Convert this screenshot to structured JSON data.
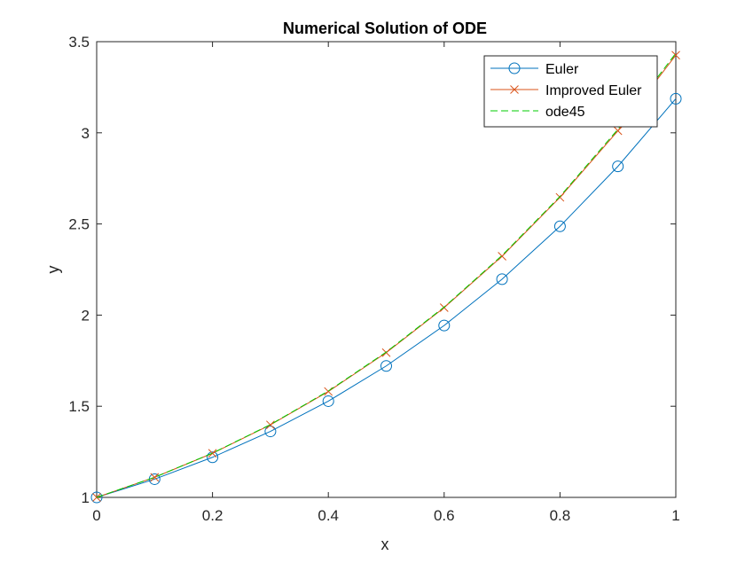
{
  "chart_data": {
    "type": "line",
    "title": "Numerical Solution of ODE",
    "xlabel": "x",
    "ylabel": "y",
    "xlim": [
      0,
      1
    ],
    "ylim": [
      1,
      3.5
    ],
    "xticks": [
      0,
      0.2,
      0.4,
      0.6,
      0.8,
      1
    ],
    "xtick_labels": [
      "0",
      "0.2",
      "0.4",
      "0.6",
      "0.8",
      "1"
    ],
    "yticks": [
      1,
      1.5,
      2,
      2.5,
      3,
      3.5
    ],
    "ytick_labels": [
      "1",
      "1.5",
      "2",
      "2.5",
      "3",
      "3.5"
    ],
    "grid": false,
    "legend_position": "top-right",
    "x": [
      0,
      0.1,
      0.2,
      0.3,
      0.4,
      0.5,
      0.6,
      0.7,
      0.8,
      0.9,
      1.0
    ],
    "series": [
      {
        "name": "Euler",
        "marker": "circle",
        "line_style": "solid",
        "color": "#0072BD",
        "values": [
          1.0,
          1.1,
          1.22,
          1.362,
          1.528,
          1.721,
          1.943,
          2.197,
          2.487,
          2.816,
          3.187
        ]
      },
      {
        "name": "Improved Euler",
        "marker": "cross",
        "line_style": "solid",
        "color": "#D95319",
        "values": [
          1.0,
          1.11,
          1.242,
          1.398,
          1.581,
          1.794,
          2.041,
          2.323,
          2.646,
          3.011,
          3.426
        ]
      },
      {
        "name": "ode45",
        "marker": "none",
        "line_style": "dashed",
        "color": "#00CC00",
        "values": [
          1.0,
          1.1103,
          1.2428,
          1.3997,
          1.5836,
          1.7974,
          2.0442,
          2.3275,
          2.6511,
          3.0192,
          3.4366
        ]
      }
    ]
  }
}
